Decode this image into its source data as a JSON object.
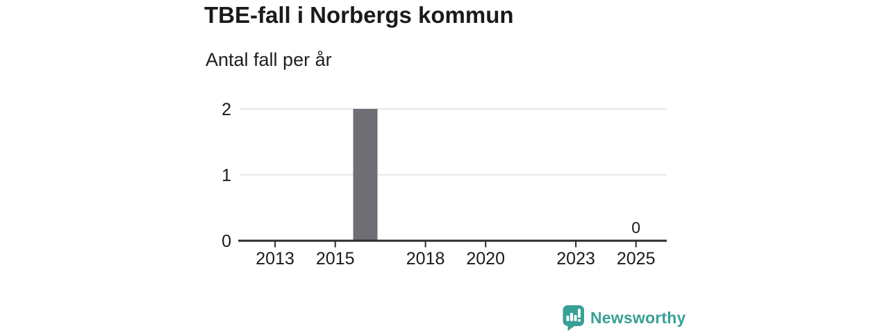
{
  "header": {
    "title": "TBE-fall i Norbergs kommun",
    "subtitle": "Antal fall per år"
  },
  "chart_data": {
    "type": "bar",
    "title": "TBE-fall i Norbergs kommun",
    "subtitle_ylabel": "Antal fall per år",
    "x": [
      2012,
      2013,
      2014,
      2015,
      2016,
      2017,
      2018,
      2019,
      2020,
      2021,
      2022,
      2023,
      2024,
      2025
    ],
    "values": [
      0,
      0,
      0,
      0,
      2,
      0,
      0,
      0,
      0,
      0,
      0,
      0,
      0,
      0
    ],
    "xticks": [
      2013,
      2015,
      2018,
      2020,
      2023,
      2025
    ],
    "yticks": [
      0,
      1,
      2
    ],
    "ylim": [
      0,
      2
    ],
    "grid": "horizontal",
    "legend": "none",
    "annotations": [
      {
        "x": 2025,
        "text": "0"
      }
    ]
  },
  "branding": {
    "name": "Newsworthy",
    "logo_icon": "bar-chart-speech-bubble-icon"
  },
  "colors": {
    "background": "#ffffff",
    "text": "#1a1a1a",
    "axis": "#2b2b2b",
    "grid": "#e1e1e1",
    "bar": "#6e6e74",
    "brand_teal": "#38a096",
    "logo_bars_white": "#ffffff"
  }
}
